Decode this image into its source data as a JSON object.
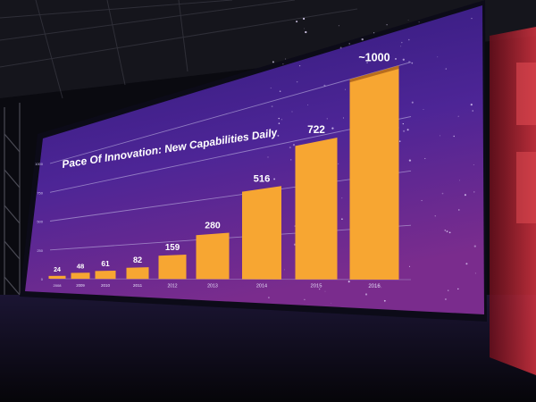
{
  "chart_data": {
    "type": "bar",
    "title": "Pace Of Innovation: New Capabilities Daily",
    "categories": [
      "2008",
      "2009",
      "2010",
      "2011",
      "2012",
      "2013",
      "2014",
      "2015",
      "2016"
    ],
    "values": [
      24,
      48,
      61,
      82,
      159,
      280,
      516,
      722,
      1000
    ],
    "data_labels": [
      "24",
      "48",
      "61",
      "82",
      "159",
      "280",
      "516",
      "722",
      "~1000"
    ],
    "yticks": [
      "0",
      "250",
      "500",
      "750",
      "1000"
    ],
    "ylim": [
      0,
      1000
    ],
    "grid": true,
    "colors": {
      "bar": "#f7a632",
      "bar_cap": "#b86d1e",
      "screen_top": "#3a1f8a",
      "screen_bottom": "#7c2d95"
    }
  }
}
